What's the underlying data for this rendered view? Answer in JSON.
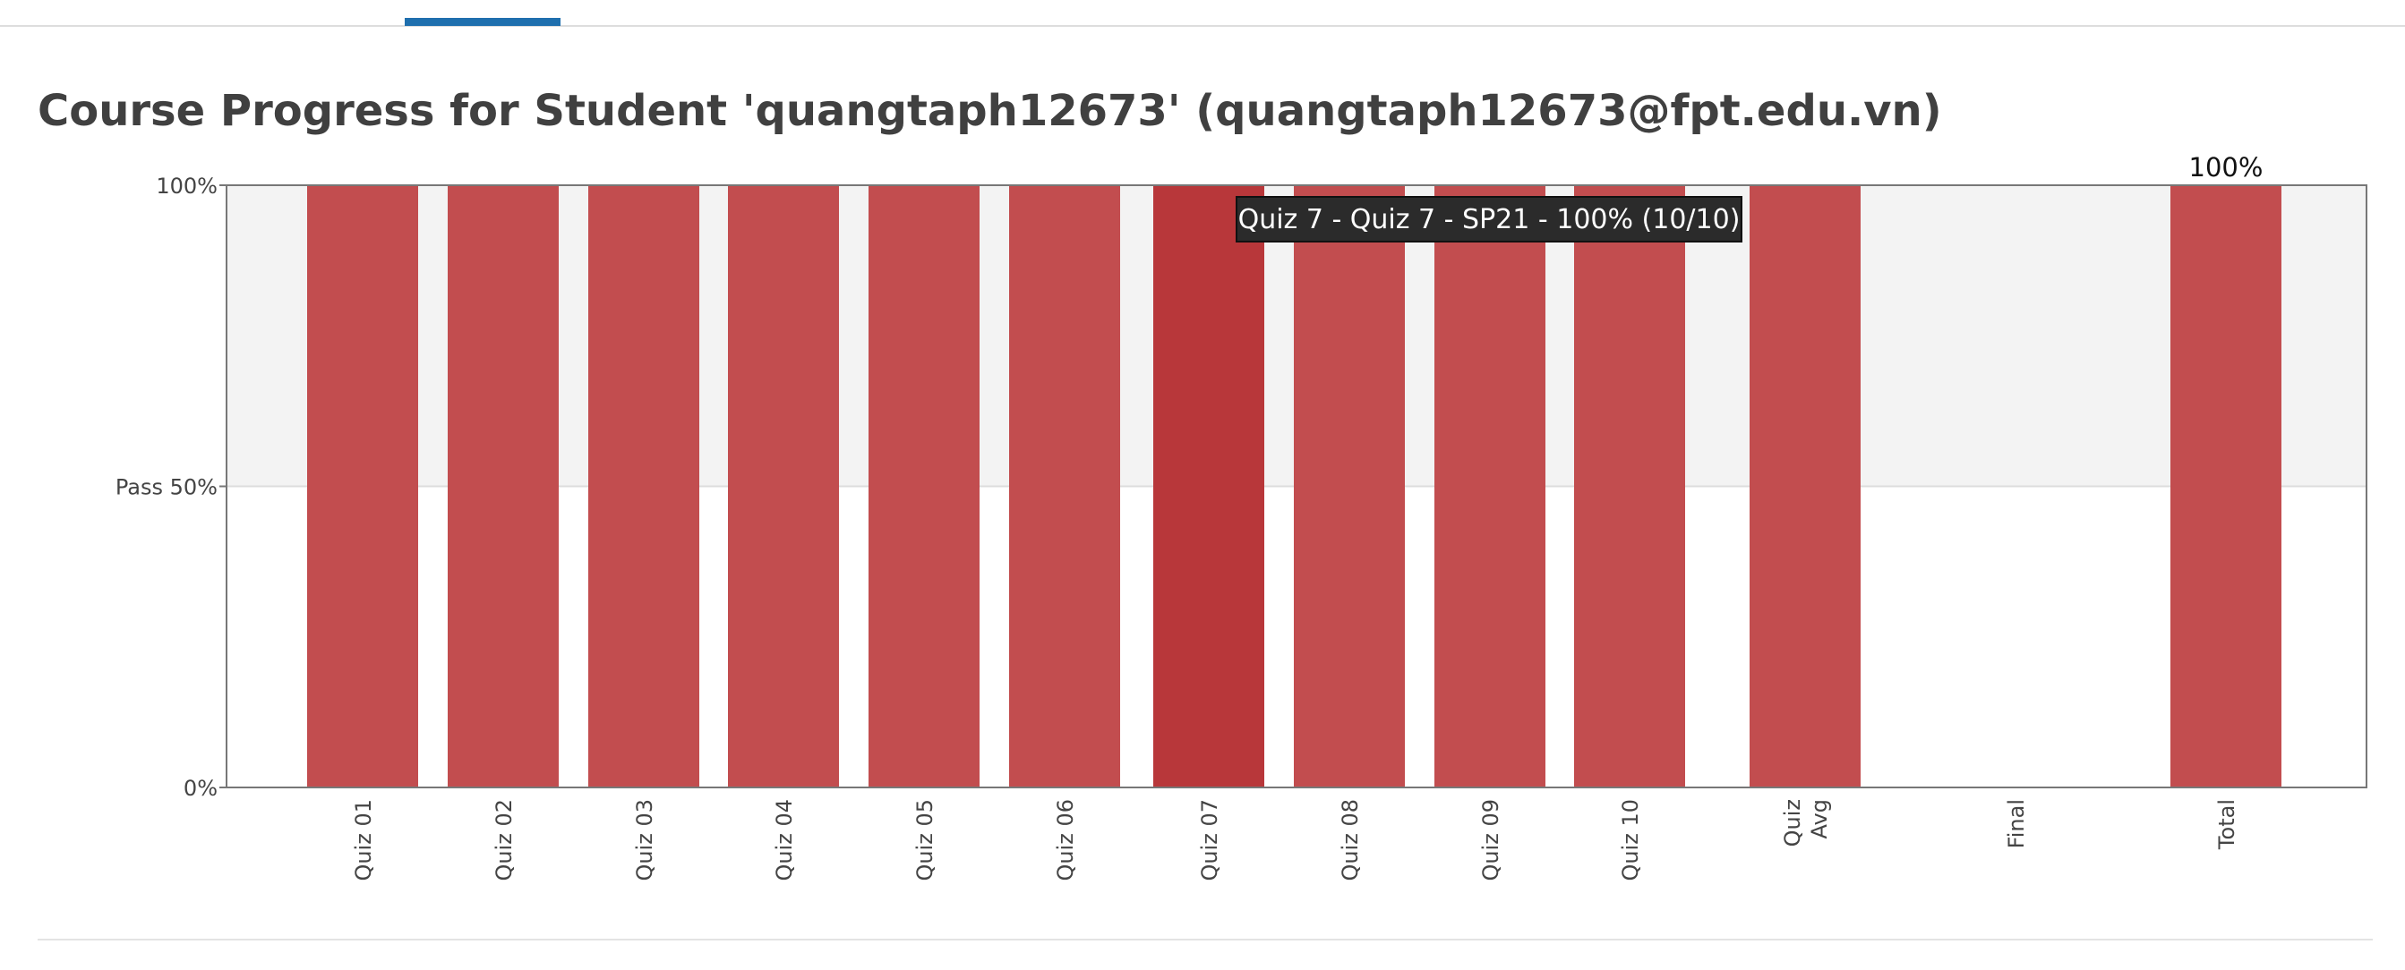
{
  "header": {
    "title": "Course Progress for Student 'quangtaph12673' (quangtaph12673@fpt.edu.vn)"
  },
  "chart_data": {
    "type": "bar",
    "title": "Course Progress for Student 'quangtaph12673' (quangtaph12673@fpt.edu.vn)",
    "ylim": [
      0,
      100
    ],
    "y_ticks": [
      {
        "value": 0,
        "label": "0%"
      },
      {
        "value": 50,
        "label": "Pass 50%"
      },
      {
        "value": 100,
        "label": "100%"
      }
    ],
    "pass_threshold": 50,
    "categories": [
      "Quiz 01",
      "Quiz 02",
      "Quiz 03",
      "Quiz 04",
      "Quiz 05",
      "Quiz 06",
      "Quiz 07",
      "Quiz 08",
      "Quiz 09",
      "Quiz 10",
      "Quiz Avg",
      "Final",
      "Total"
    ],
    "category_label_lines": [
      [
        "Quiz 01"
      ],
      [
        "Quiz 02"
      ],
      [
        "Quiz 03"
      ],
      [
        "Quiz 04"
      ],
      [
        "Quiz 05"
      ],
      [
        "Quiz 06"
      ],
      [
        "Quiz 07"
      ],
      [
        "Quiz 08"
      ],
      [
        "Quiz 09"
      ],
      [
        "Quiz 10"
      ],
      [
        "Quiz",
        "Avg"
      ],
      [
        "Final"
      ],
      [
        "Total"
      ]
    ],
    "values": [
      100,
      100,
      100,
      100,
      100,
      100,
      100,
      100,
      100,
      100,
      100,
      0,
      100
    ],
    "data_labels": {
      "Total": "100%"
    },
    "highlighted": "Quiz 07",
    "tooltip": "Quiz 7 - Quiz 7 - SP21 - 100% (10/10)",
    "colors": {
      "bar": "#c24d4f",
      "bar_highlight": "#b8373a",
      "pass_band": "#f3f3f3",
      "axis": "#777777",
      "tooltip_bg": "#2b2b2b"
    },
    "legend": "none"
  }
}
